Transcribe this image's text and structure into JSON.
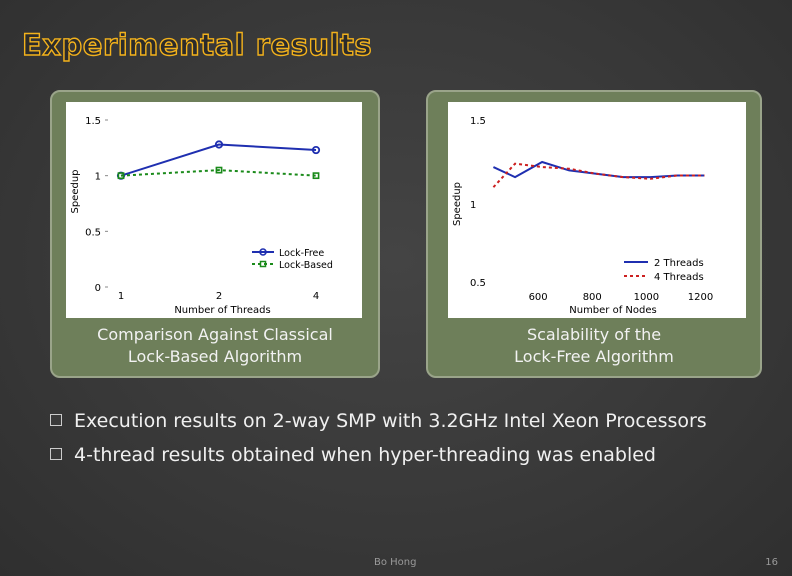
{
  "slide": {
    "title": "Experimental results",
    "bullets": [
      "Execution results on 2-way SMP with  3.2GHz Intel Xeon Processors",
      "4-thread results obtained when hyper-threading was enabled"
    ],
    "footer": "Bo Hong",
    "page_number": "16"
  },
  "panels": {
    "left_caption": [
      "Comparison Against Classical",
      "Lock-Based Algorithm"
    ],
    "right_caption": [
      "Scalability of the",
      "Lock-Free Algorithm"
    ]
  },
  "colors": {
    "title_outline": "#f3b21c",
    "panel_bg": "#6e7f5a",
    "series_blue": "#1f2fb0",
    "series_green": "#1a8a1a",
    "series_red": "#cc2020"
  },
  "chart_data": [
    {
      "type": "line",
      "xlabel": "Number of Threads",
      "ylabel": "Speedup",
      "xticks": [
        "1",
        "2",
        "4"
      ],
      "yticks": [
        "0",
        "0.5",
        "1",
        "1.5"
      ],
      "ylim": [
        0,
        1.5
      ],
      "legend": "bottom-right",
      "series": [
        {
          "name": "Lock-Free",
          "x": [
            1,
            2,
            4
          ],
          "values": [
            1.0,
            1.28,
            1.23
          ],
          "color": "#1f2fb0",
          "marker": "circle",
          "style": "solid"
        },
        {
          "name": "Lock-Based",
          "x": [
            1,
            2,
            4
          ],
          "values": [
            1.0,
            1.05,
            1.0
          ],
          "color": "#1a8a1a",
          "marker": "square",
          "style": "dotted"
        }
      ]
    },
    {
      "type": "line",
      "xlabel": "Number of Nodes",
      "ylabel": "Speedup",
      "xticks": [
        "600",
        "800",
        "1000",
        "1200"
      ],
      "yticks": [
        "0.5",
        "1",
        "1.5"
      ],
      "xlim": [
        400,
        1250
      ],
      "ylim": [
        0.5,
        1.5
      ],
      "legend": "bottom-right",
      "series": [
        {
          "name": "2 Threads",
          "x": [
            420,
            500,
            600,
            700,
            800,
            900,
            1000,
            1100,
            1200
          ],
          "values": [
            1.22,
            1.16,
            1.25,
            1.2,
            1.18,
            1.16,
            1.16,
            1.17,
            1.17
          ],
          "color": "#1f2fb0",
          "style": "solid"
        },
        {
          "name": "4 Threads",
          "x": [
            420,
            500,
            600,
            700,
            800,
            900,
            1000,
            1100,
            1200
          ],
          "values": [
            1.1,
            1.24,
            1.22,
            1.21,
            1.18,
            1.16,
            1.15,
            1.17,
            1.17
          ],
          "color": "#cc2020",
          "style": "dotted"
        }
      ]
    }
  ]
}
